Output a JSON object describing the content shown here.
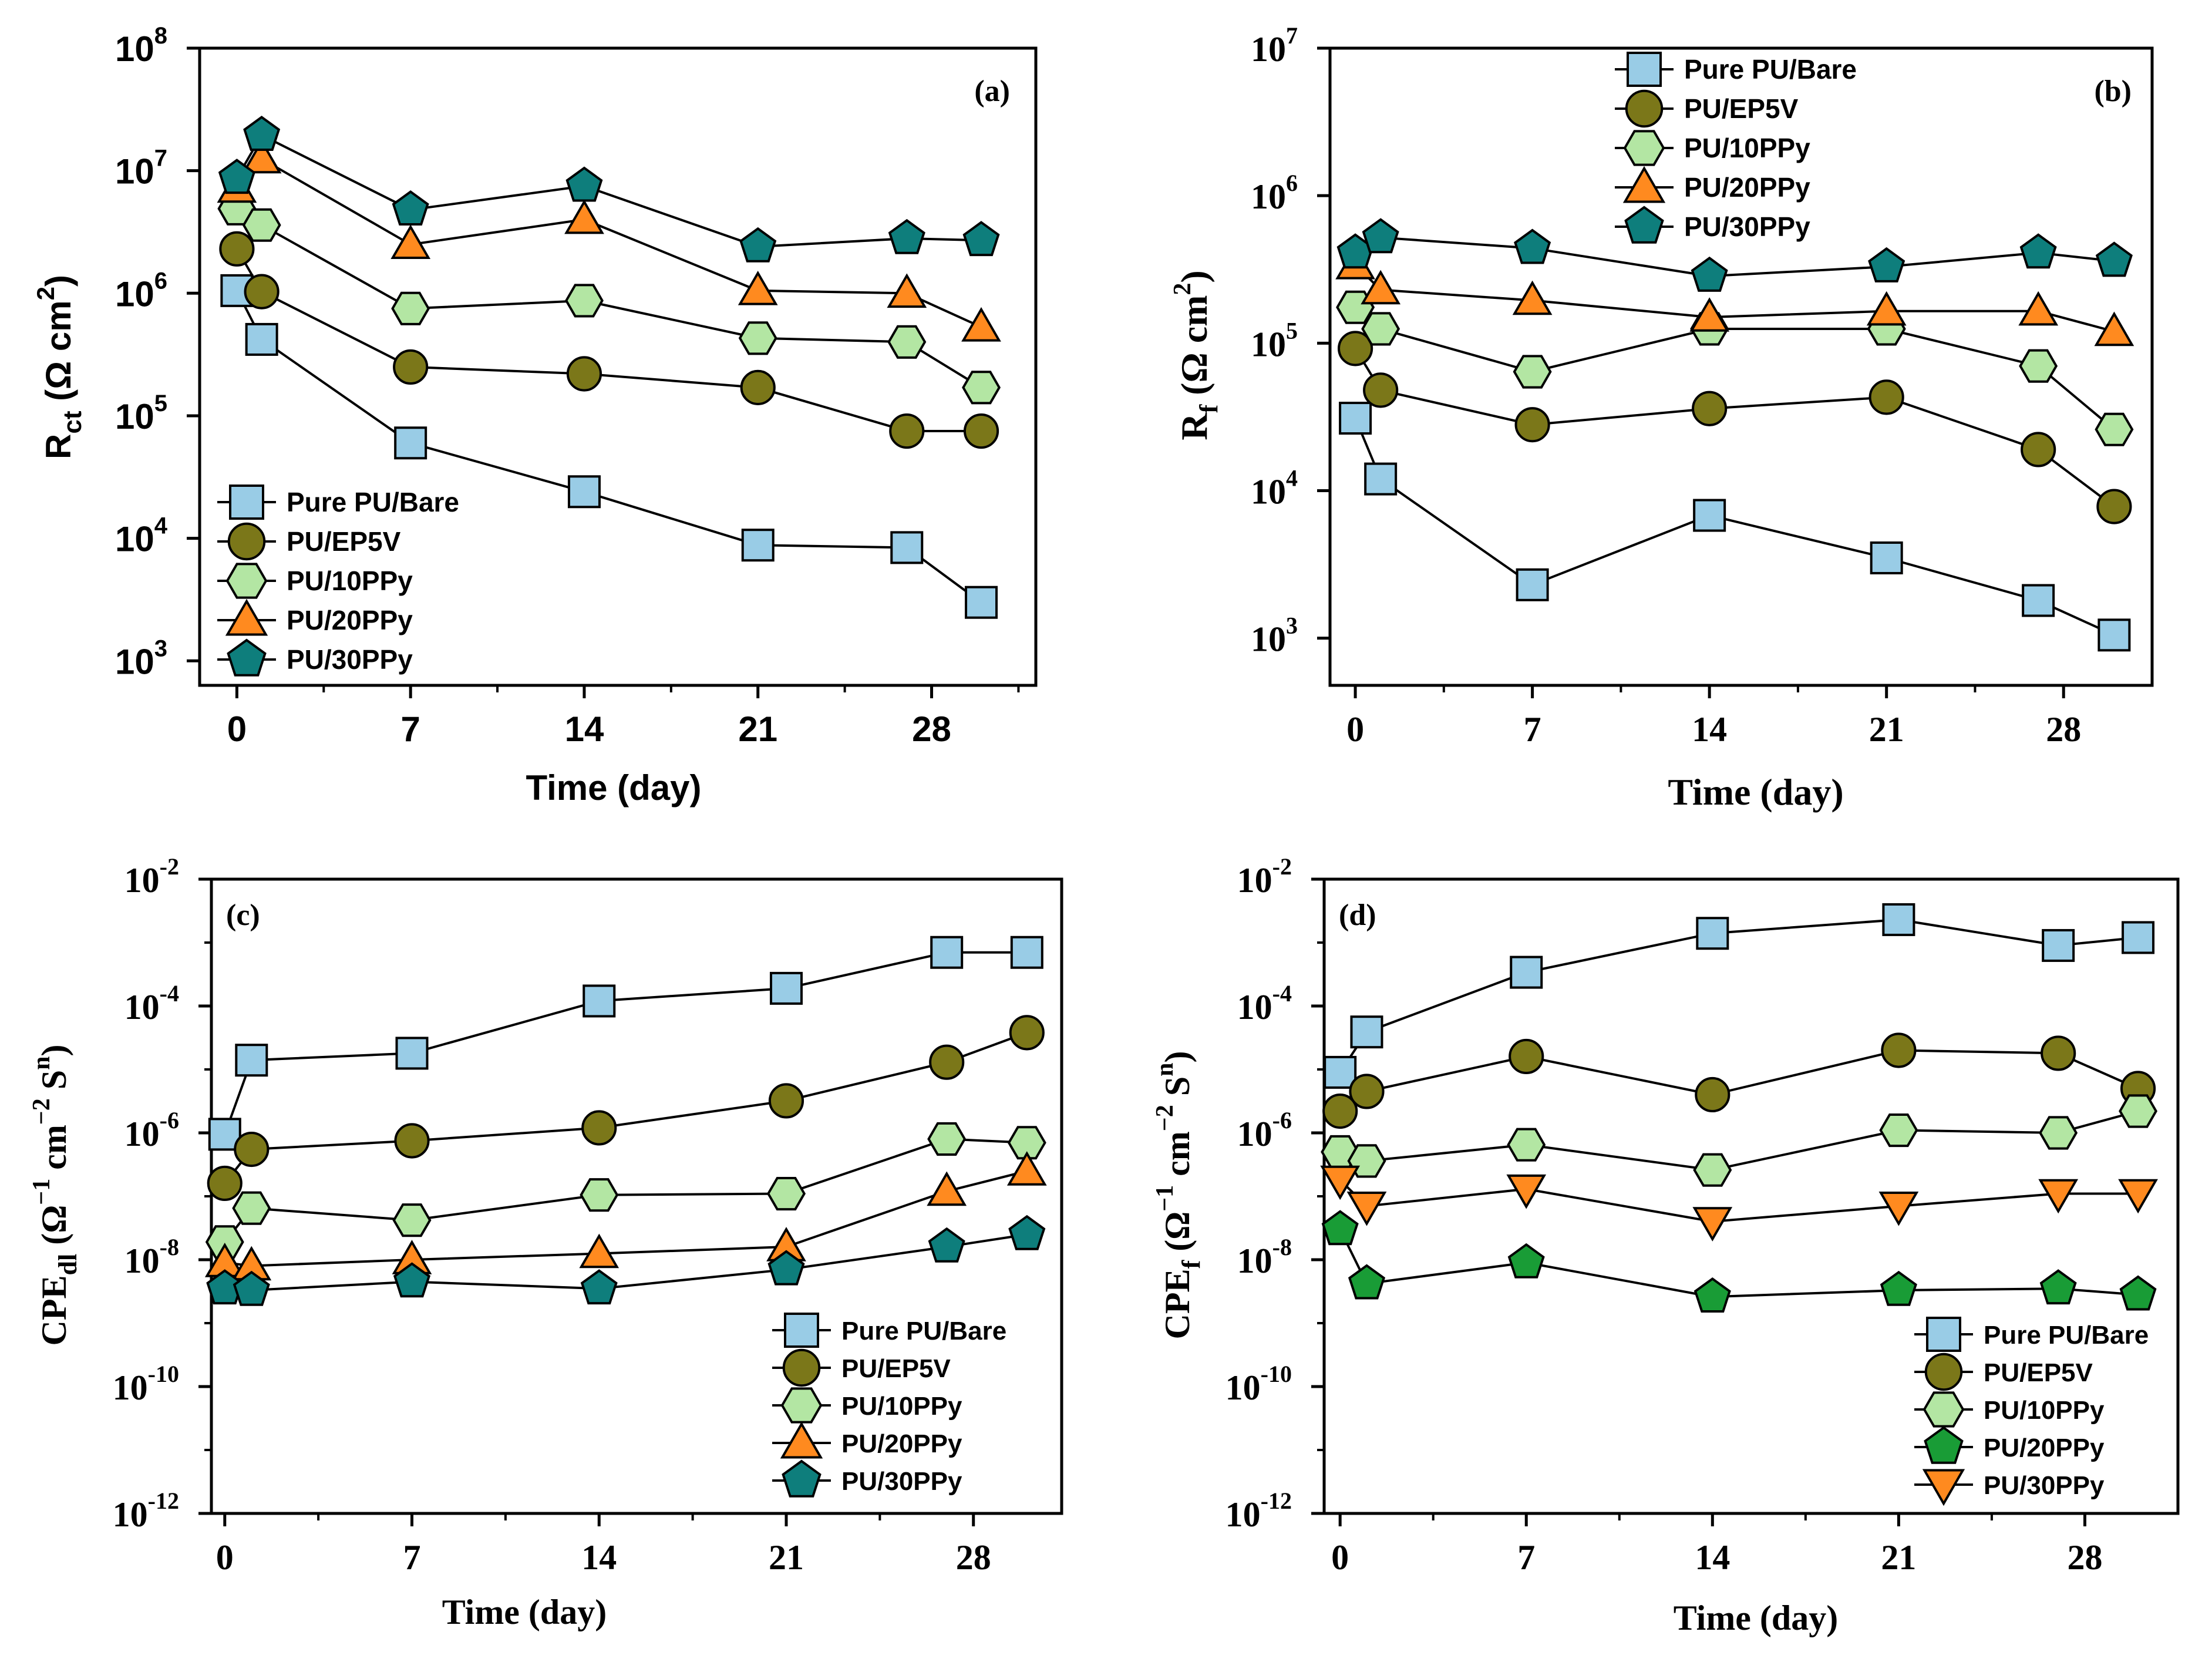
{
  "series_styles": [
    {
      "name": "Pure PU/Bare",
      "marker": "square",
      "color": "#99cce6"
    },
    {
      "name": "PU/EP5V",
      "marker": "circle",
      "color": "#7b7719"
    },
    {
      "name": "PU/10PPy",
      "marker": "hexagon",
      "color": "#b3e6a3"
    },
    {
      "name": "PU/20PPy",
      "marker": "triangle",
      "color": "#ff8a1f"
    },
    {
      "name": "PU/30PPy",
      "marker": "pentagon",
      "color": "#0e7e7c"
    },
    {
      "name": "PU/20PPy (d)",
      "marker": "pentagon",
      "color": "#199c36"
    },
    {
      "name": "PU/30PPy (d)",
      "marker": "triangle-down",
      "color": "#ff8a1f"
    }
  ],
  "chart_data": [
    {
      "id": "a",
      "type": "line",
      "panel_label": "(a)",
      "xlabel": "Time (day)",
      "ylabel_main": "R",
      "ylabel_sub": "ct",
      "ylabel_rest": " (Ω cm",
      "ylabel_sup": "2",
      "ylabel_end": ")",
      "xlim": [
        -1.5,
        32.2
      ],
      "ylim_exp": [
        2.8,
        8
      ],
      "xticks": [
        "0",
        "7",
        "14",
        "21",
        "28"
      ],
      "xtick_values": [
        0,
        7,
        14,
        21,
        28
      ],
      "yticks": [
        {
          "base": "10",
          "exp": "3",
          "v": 3
        },
        {
          "base": "10",
          "exp": "4",
          "v": 4
        },
        {
          "base": "10",
          "exp": "5",
          "v": 5
        },
        {
          "base": "10",
          "exp": "6",
          "v": 6
        },
        {
          "base": "10",
          "exp": "7",
          "v": 7
        },
        {
          "base": "10",
          "exp": "8",
          "v": 8
        }
      ],
      "legend_position": "bottom-left",
      "series": [
        {
          "name": "Pure PU/Bare",
          "style": 0,
          "x": [
            0,
            1,
            7,
            14,
            21,
            27,
            30
          ],
          "y": [
            1050000,
            420000,
            60000,
            24000,
            8800,
            8400,
            3000
          ]
        },
        {
          "name": "PU/EP5V",
          "style": 1,
          "x": [
            0,
            1,
            7,
            14,
            21,
            27,
            30
          ],
          "y": [
            2300000,
            1030000,
            250000,
            220000,
            170000,
            75000,
            75000
          ]
        },
        {
          "name": "PU/10PPy",
          "style": 2,
          "x": [
            0,
            1,
            7,
            14,
            21,
            27,
            30
          ],
          "y": [
            4900000,
            3600000,
            750000,
            870000,
            430000,
            400000,
            170000
          ]
        },
        {
          "name": "PU/20PPy",
          "style": 3,
          "x": [
            0,
            1,
            7,
            14,
            21,
            27,
            30
          ],
          "y": [
            7200000,
            12500000,
            2500000,
            4000000,
            1050000,
            1000000,
            530000
          ]
        },
        {
          "name": "PU/30PPy",
          "style": 4,
          "x": [
            0,
            1,
            7,
            14,
            21,
            27,
            30
          ],
          "y": [
            8700000,
            19500000,
            4800000,
            7500000,
            2400000,
            2800000,
            2700000
          ]
        }
      ]
    },
    {
      "id": "b",
      "type": "line",
      "panel_label": "(b)",
      "xlabel": "Time (day)",
      "ylabel_main": "R",
      "ylabel_sub": "f",
      "ylabel_rest": " (Ω cm",
      "ylabel_sup": "2",
      "ylabel_end": ")",
      "xlim": [
        -1.0,
        31.5
      ],
      "ylim_exp": [
        2.68,
        7
      ],
      "xticks": [
        "0",
        "7",
        "14",
        "21",
        "28"
      ],
      "xtick_values": [
        0,
        7,
        14,
        21,
        28
      ],
      "yticks": [
        {
          "base": "10",
          "exp": "3",
          "v": 3
        },
        {
          "base": "10",
          "exp": "4",
          "v": 4
        },
        {
          "base": "10",
          "exp": "5",
          "v": 5
        },
        {
          "base": "10",
          "exp": "6",
          "v": 6
        },
        {
          "base": "10",
          "exp": "7",
          "v": 7
        }
      ],
      "legend_position": "top-left",
      "series": [
        {
          "name": "Pure PU/Bare",
          "style": 0,
          "x": [
            0,
            1,
            7,
            14,
            21,
            27,
            30
          ],
          "y": [
            31000,
            12000,
            2300,
            6800,
            3500,
            1800,
            1050
          ]
        },
        {
          "name": "PU/EP5V",
          "style": 1,
          "x": [
            0,
            1,
            7,
            14,
            21,
            27,
            30
          ],
          "y": [
            92000,
            48000,
            28000,
            36000,
            43000,
            19000,
            7800
          ]
        },
        {
          "name": "PU/10PPy",
          "style": 2,
          "x": [
            0,
            1,
            7,
            14,
            21,
            27,
            30
          ],
          "y": [
            175000,
            125000,
            64000,
            125000,
            125000,
            70000,
            26000
          ]
        },
        {
          "name": "PU/20PPy",
          "style": 3,
          "x": [
            0,
            1,
            7,
            14,
            21,
            27,
            30
          ],
          "y": [
            340000,
            230000,
            195000,
            150000,
            165000,
            165000,
            120000
          ]
        },
        {
          "name": "PU/30PPy",
          "style": 4,
          "x": [
            0,
            1,
            7,
            14,
            21,
            27,
            30
          ],
          "y": [
            410000,
            520000,
            440000,
            285000,
            330000,
            410000,
            360000
          ]
        }
      ]
    },
    {
      "id": "c",
      "type": "line",
      "panel_label": "(c)",
      "xlabel": "Time (day)",
      "ylabel_main": "CPE",
      "ylabel_sub": "dl",
      "ylabel_rest": " (Ω",
      "ylabel_sup": "−1",
      "ylabel_mid": " cm",
      "ylabel_sup2": "−2",
      "ylabel_mid2": " S",
      "ylabel_sup3": "n",
      "ylabel_end": ")",
      "xlim": [
        -0.5,
        31.3
      ],
      "ylim_exp": [
        -12,
        -2
      ],
      "xticks": [
        "0",
        "7",
        "14",
        "21",
        "28"
      ],
      "xtick_values": [
        0,
        7,
        14,
        21,
        28
      ],
      "yticks": [
        {
          "base": "10",
          "exp": "-12",
          "v": -12
        },
        {
          "base": "10",
          "exp": "-10",
          "v": -10
        },
        {
          "base": "10",
          "exp": "-8",
          "v": -8
        },
        {
          "base": "10",
          "exp": "-6",
          "v": -6
        },
        {
          "base": "10",
          "exp": "-4",
          "v": -4
        },
        {
          "base": "10",
          "exp": "-2",
          "v": -2
        }
      ],
      "legend_position": "bottom-right",
      "series": [
        {
          "name": "Pure PU/Bare",
          "style": 0,
          "x": [
            0,
            1,
            7,
            14,
            21,
            27,
            30
          ],
          "y": [
            9.5e-07,
            1.4e-05,
            1.8e-05,
            0.00012,
            0.00019,
            0.0007,
            0.0007
          ]
        },
        {
          "name": "PU/EP5V",
          "style": 1,
          "x": [
            0,
            1,
            7,
            14,
            21,
            27,
            30
          ],
          "y": [
            1.6e-07,
            5.5e-07,
            7.5e-07,
            1.2e-06,
            3.2e-06,
            1.3e-05,
            3.8e-05
          ]
        },
        {
          "name": "PU/10PPy",
          "style": 2,
          "x": [
            0,
            1,
            7,
            14,
            21,
            27,
            30
          ],
          "y": [
            1.9e-08,
            6.5e-08,
            4.2e-08,
            1.05e-07,
            1.1e-07,
            8e-07,
            7e-07
          ]
        },
        {
          "name": "PU/20PPy",
          "style": 3,
          "x": [
            0,
            1,
            7,
            14,
            21,
            27,
            30
          ],
          "y": [
            9e-09,
            8e-09,
            1e-08,
            1.25e-08,
            1.6e-08,
            1.2e-07,
            2.5e-07
          ]
        },
        {
          "name": "PU/30PPy",
          "style": 4,
          "x": [
            0,
            1,
            7,
            14,
            21,
            27,
            30
          ],
          "y": [
            3.5e-09,
            3.3e-09,
            4.5e-09,
            3.5e-09,
            7e-09,
            1.6e-08,
            2.5e-08
          ]
        }
      ]
    },
    {
      "id": "d",
      "type": "line",
      "panel_label": "(d)",
      "xlabel": "Time (day)",
      "ylabel_main": "CPE",
      "ylabel_sub": "f",
      "ylabel_rest": " (Ω",
      "ylabel_sup": "−1",
      "ylabel_mid": " cm",
      "ylabel_sup2": "−2",
      "ylabel_mid2": " S",
      "ylabel_sup3": "n",
      "ylabel_end": ")",
      "xlim": [
        -0.6,
        31.5
      ],
      "ylim_exp": [
        -12,
        -2
      ],
      "xticks": [
        "0",
        "7",
        "14",
        "21",
        "28"
      ],
      "xtick_values": [
        0,
        7,
        14,
        21,
        28
      ],
      "yticks": [
        {
          "base": "10",
          "exp": "-12",
          "v": -12
        },
        {
          "base": "10",
          "exp": "-10",
          "v": -10
        },
        {
          "base": "10",
          "exp": "-8",
          "v": -8
        },
        {
          "base": "10",
          "exp": "-6",
          "v": -6
        },
        {
          "base": "10",
          "exp": "-4",
          "v": -4
        },
        {
          "base": "10",
          "exp": "-2",
          "v": -2
        }
      ],
      "legend_position": "bottom-right",
      "series": [
        {
          "name": "Pure PU/Bare",
          "style": 0,
          "x": [
            0,
            1,
            7,
            14,
            21,
            27,
            30
          ],
          "y": [
            9e-06,
            3.9e-05,
            0.00034,
            0.0014,
            0.0023,
            0.0009,
            0.0012
          ]
        },
        {
          "name": "PU/EP5V",
          "style": 1,
          "x": [
            0,
            1,
            7,
            14,
            21,
            27,
            30
          ],
          "y": [
            2.2e-06,
            4.5e-06,
            1.6e-05,
            4e-06,
            2e-05,
            1.8e-05,
            5e-06
          ]
        },
        {
          "name": "PU/10PPy",
          "style": 2,
          "x": [
            0,
            1,
            7,
            14,
            21,
            27,
            30
          ],
          "y": [
            5e-07,
            3.6e-07,
            6.5e-07,
            2.6e-07,
            1.1e-06,
            1e-06,
            2.2e-06
          ]
        },
        {
          "name": "PU/20PPy",
          "style": 5,
          "x": [
            0,
            1,
            7,
            14,
            21,
            27,
            30
          ],
          "y": [
            3e-08,
            4.2e-09,
            9e-09,
            2.6e-09,
            3.3e-09,
            3.5e-09,
            2.8e-09
          ]
        },
        {
          "name": "PU/30PPy",
          "style": 6,
          "x": [
            0,
            1,
            7,
            14,
            21,
            27,
            30
          ],
          "y": [
            1.8e-07,
            7e-08,
            1.3e-07,
            4e-08,
            7e-08,
            1.1e-07,
            1.1e-07
          ]
        }
      ]
    }
  ]
}
